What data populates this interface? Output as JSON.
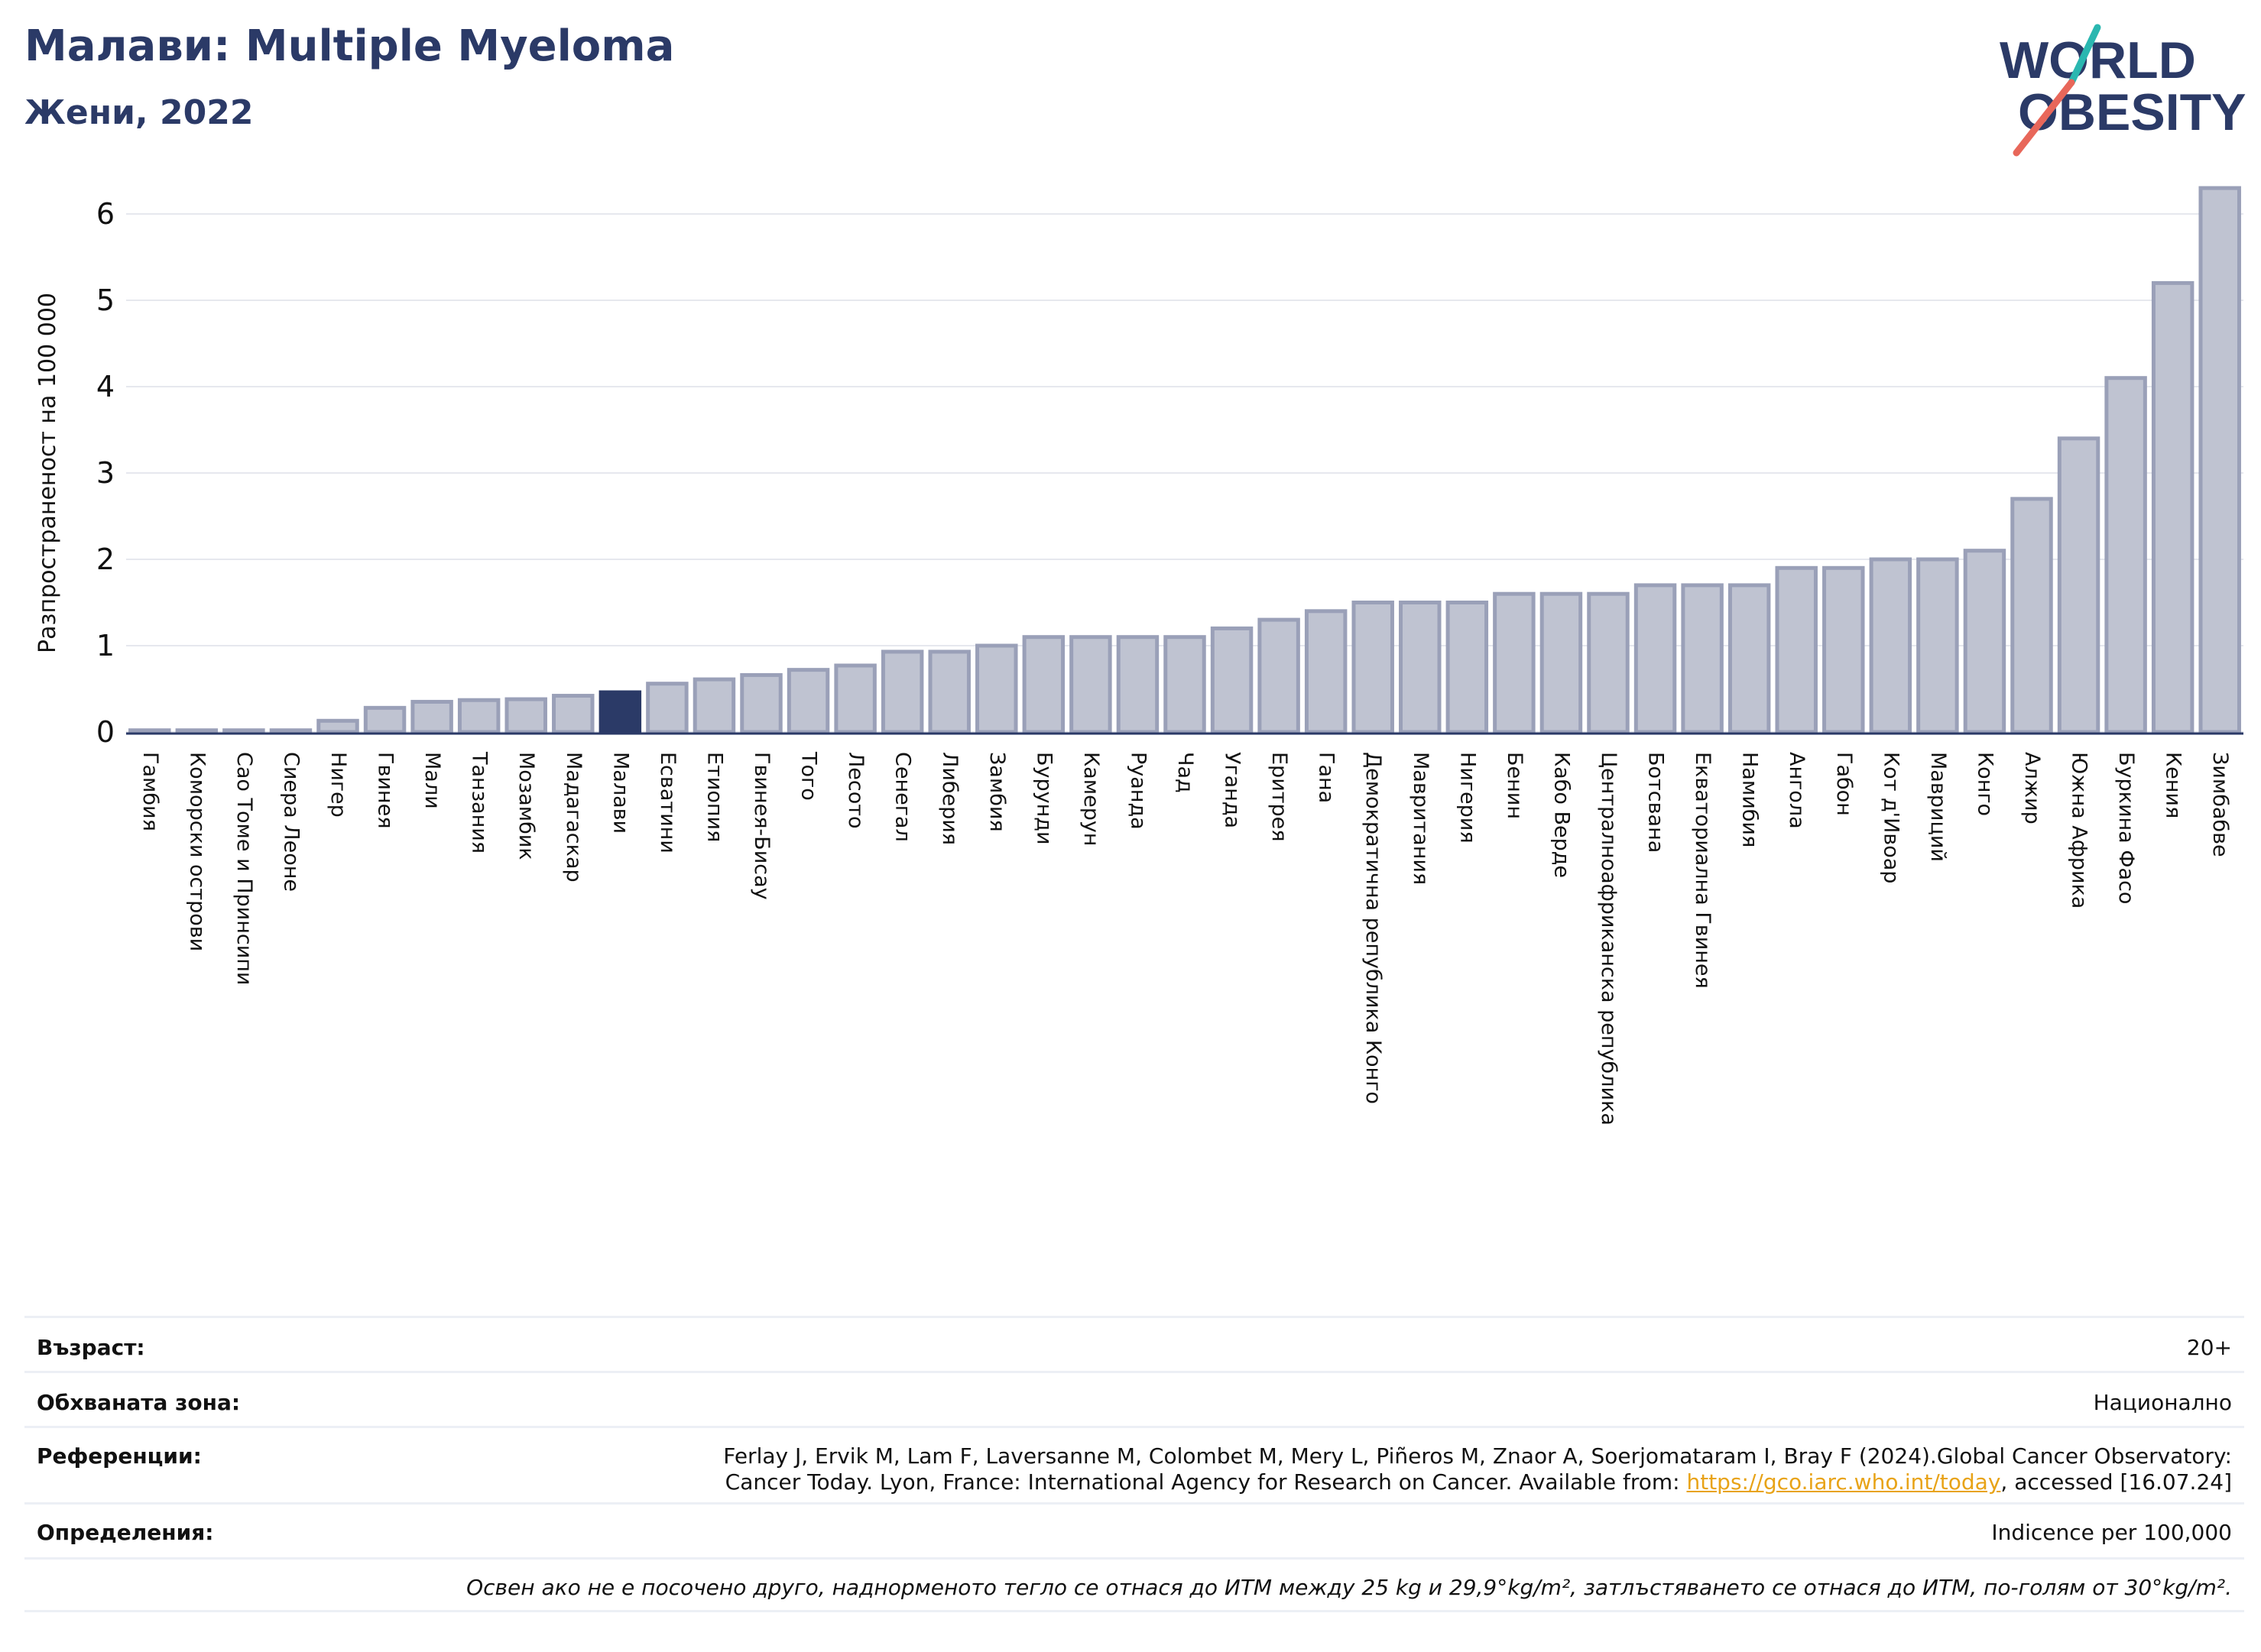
{
  "header": {
    "title": "Малави: Multiple Myeloma",
    "subtitle": "Жени, 2022"
  },
  "logo": {
    "line1": "WORLD",
    "line2": "OBESITY"
  },
  "colors": {
    "highlight_bar": "#2b3a67",
    "bar_fill": "#bfc3d1",
    "bar_stroke": "#9aa0b8",
    "title": "#2b3a67",
    "link": "#e8a317",
    "logo_teal": "#2ab7b0",
    "logo_coral": "#e8675a"
  },
  "chart_data": {
    "type": "bar",
    "ylabel": "Разпространеност  на 100 000",
    "xlabel": "",
    "ylim": [
      0,
      6.4
    ],
    "yticks": [
      0,
      1,
      2,
      3,
      4,
      5,
      6
    ],
    "grid": true,
    "highlight": "Малави",
    "categories": [
      "Гамбия",
      "Коморски острови",
      "Сао Томе и Принсипи",
      "Сиера Леоне",
      "Нигер",
      "Гвинея",
      "Мали",
      "Танзания",
      "Мозамбик",
      "Мадагаскар",
      "Малави",
      "Есватини",
      "Етиопия",
      "Гвинея-Бисау",
      "Того",
      "Лесото",
      "Сенегал",
      "Либерия",
      "Замбия",
      "Бурунди",
      "Камерун",
      "Руанда",
      "Чад",
      "Уганда",
      "Еритрея",
      "Гана",
      "Демократична република Конго",
      "Мавритания",
      "Нигерия",
      "Бенин",
      "Кабо Верде",
      "Централноафриканска република",
      "Ботсвана",
      "Екваториална Гвинея",
      "Намибия",
      "Ангола",
      "Габон",
      "Кот д'Ивоар",
      "Мавриций",
      "Конго",
      "Алжир",
      "Южна Африка",
      "Буркина Фасо",
      "Кения",
      "Зимбабве"
    ],
    "values": [
      0.02,
      0.02,
      0.02,
      0.02,
      0.13,
      0.28,
      0.35,
      0.37,
      0.38,
      0.42,
      0.46,
      0.56,
      0.61,
      0.66,
      0.72,
      0.77,
      0.93,
      0.93,
      1.0,
      1.1,
      1.1,
      1.1,
      1.1,
      1.2,
      1.3,
      1.4,
      1.5,
      1.5,
      1.5,
      1.6,
      1.6,
      1.6,
      1.7,
      1.7,
      1.7,
      1.9,
      1.9,
      2.0,
      2.0,
      2.1,
      2.7,
      3.4,
      4.1,
      5.2,
      6.3
    ]
  },
  "meta": {
    "age_label": "Възраст:",
    "age_value": "20+",
    "area_label": "Обхваната зона:",
    "area_value": "Национално",
    "refs_label": "Референции:",
    "refs_line1": "Ferlay J, Ervik M, Lam F, Laversanne M, Colombet M, Mery L, Piñeros M, Znaor A, Soerjomataram I, Bray F (2024).Global Cancer Observatory:",
    "refs_line2_pre": "Cancer Today. Lyon, France: International Agency for Research on Cancer. Available from: ",
    "refs_link": "https://gco.iarc.who.int/today",
    "refs_line2_post": ", accessed [16.07.24]",
    "defs_label": "Определения:",
    "defs_value": "Indicence per 100,000",
    "note": "Освен ако не е посочено друго, наднорменото тегло се отнася до ИТМ между 25 kg и 29,9°kg/m², затлъстяването се отнася до ИТМ, по-голям от 30°kg/m²."
  }
}
